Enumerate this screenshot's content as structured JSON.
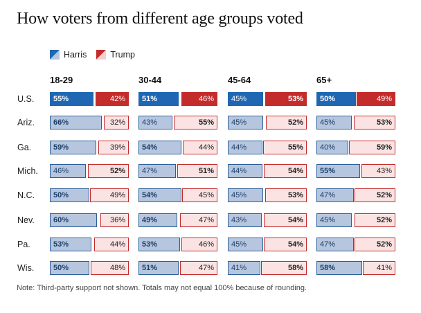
{
  "title": "How voters from different age groups voted",
  "legend": {
    "harris": "Harris",
    "trump": "Trump"
  },
  "note": "Note: Third-party support not shown. Totals may not equal 100% because of rounding.",
  "colors": {
    "harris": "#1f66b3",
    "harris_light": "#b6c6de",
    "trump": "#c42b2b",
    "trump_light": "#fbe3e3"
  },
  "chart_data": {
    "type": "bar",
    "stacked": true,
    "groups": [
      "18-29",
      "30-44",
      "45-64",
      "65+"
    ],
    "states": [
      "U.S.",
      "Ariz.",
      "Ga.",
      "Mich.",
      "N.C.",
      "Nev.",
      "Pa.",
      "Wis."
    ],
    "series": [
      {
        "name": "Harris",
        "values": [
          [
            55,
            51,
            45,
            50
          ],
          [
            66,
            43,
            45,
            45
          ],
          [
            59,
            54,
            44,
            40
          ],
          [
            46,
            47,
            44,
            55
          ],
          [
            50,
            54,
            45,
            47
          ],
          [
            60,
            49,
            43,
            45
          ],
          [
            53,
            53,
            45,
            47
          ],
          [
            50,
            51,
            41,
            58
          ]
        ]
      },
      {
        "name": "Trump",
        "values": [
          [
            42,
            46,
            53,
            49
          ],
          [
            32,
            55,
            52,
            53
          ],
          [
            39,
            44,
            55,
            59
          ],
          [
            52,
            51,
            54,
            43
          ],
          [
            49,
            45,
            53,
            52
          ],
          [
            36,
            47,
            54,
            52
          ],
          [
            44,
            46,
            54,
            52
          ],
          [
            48,
            47,
            58,
            41
          ]
        ]
      }
    ],
    "value_suffix": "%"
  }
}
